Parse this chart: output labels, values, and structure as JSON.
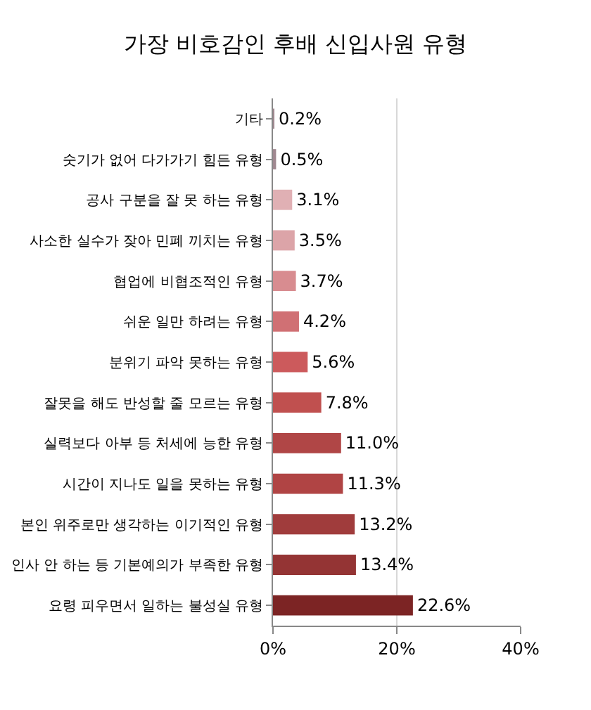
{
  "chart_data": {
    "type": "bar",
    "orientation": "horizontal",
    "title": "가장 비호감인 후배 신입사원 유형",
    "categories": [
      "기타",
      "숫기가 없어 다가가기 힘든 유형",
      "공사 구분을 잘 못 하는 유형",
      "사소한 실수가 잦아 민폐 끼치는 유형",
      "협업에 비협조적인 유형",
      "쉬운 일만 하려는 유형",
      "분위기 파악 못하는 유형",
      "잘못을 해도 반성할 줄 모르는 유형",
      "실력보다 아부 등 처세에 능한 유형",
      "시간이 지나도 일을 못하는 유형",
      "본인 위주로만 생각하는 이기적인 유형",
      "인사 안 하는 등 기본예의가 부족한 유형",
      "요령 피우면서 일하는 불성실 유형"
    ],
    "values": [
      0.2,
      0.5,
      3.1,
      3.5,
      3.7,
      4.2,
      5.6,
      7.8,
      11.0,
      11.3,
      13.2,
      13.4,
      22.6
    ],
    "value_labels": [
      "0.2%",
      "0.5%",
      "3.1%",
      "3.5%",
      "3.7%",
      "4.2%",
      "5.6%",
      "7.8%",
      "11.0%",
      "11.3%",
      "13.2%",
      "13.4%",
      "22.6%"
    ],
    "colors": [
      "#a08890",
      "#a08890",
      "#e0b0b4",
      "#dca4a8",
      "#d88c90",
      "#d07074",
      "#cc5a5c",
      "#c0504f",
      "#b04646",
      "#b04444",
      "#a03c3c",
      "#943434",
      "#7c2424"
    ],
    "xlim": [
      0,
      40
    ],
    "xticks": [
      {
        "value": 0,
        "label": "0%"
      },
      {
        "value": 20,
        "label": "20%"
      },
      {
        "value": 40,
        "label": "40%"
      }
    ],
    "grid": "x"
  }
}
